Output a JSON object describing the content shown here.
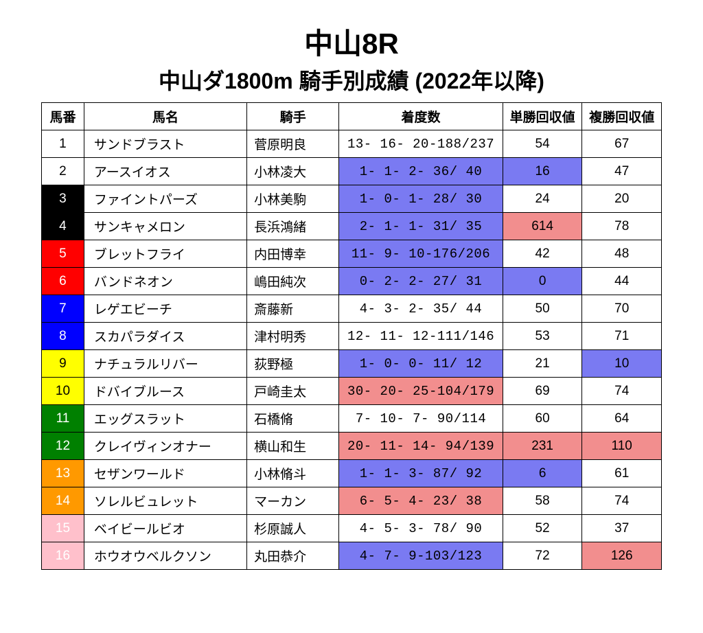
{
  "title": "中山8R",
  "subtitle": "中山ダ1800m 騎手別成績 (2022年以降)",
  "columns": [
    "馬番",
    "馬名",
    "騎手",
    "着度数",
    "単勝回収値",
    "複勝回収値"
  ],
  "highlight_colors": {
    "blue": "#7a7af2",
    "red": "#f28e8e",
    "none": "#ffffff"
  },
  "num_colors": {
    "white": {
      "bg": "#ffffff",
      "fg": "#000000"
    },
    "black": {
      "bg": "#000000",
      "fg": "#ffffff"
    },
    "red": {
      "bg": "#ff0000",
      "fg": "#ffffff"
    },
    "blue": {
      "bg": "#0000ff",
      "fg": "#ffffff"
    },
    "yellow": {
      "bg": "#ffff00",
      "fg": "#000000"
    },
    "green": {
      "bg": "#008000",
      "fg": "#ffffff"
    },
    "orange": {
      "bg": "#ff9900",
      "fg": "#ffffff"
    },
    "pink": {
      "bg": "#ffc0cb",
      "fg": "#ffffff"
    }
  },
  "rows": [
    {
      "num": "1",
      "num_color": "white",
      "name": "サンドブラスト",
      "jockey": "菅原明良",
      "record": "13- 16- 20-188/237",
      "record_hl": "none",
      "win": "54",
      "win_hl": "none",
      "place": "67",
      "place_hl": "none"
    },
    {
      "num": "2",
      "num_color": "white",
      "name": "アースイオス",
      "jockey": "小林凌大",
      "record": " 1-  1-  2- 36/ 40",
      "record_hl": "blue",
      "win": "16",
      "win_hl": "blue",
      "place": "47",
      "place_hl": "none"
    },
    {
      "num": "3",
      "num_color": "black",
      "name": "ファイントパーズ",
      "jockey": "小林美駒",
      "record": " 1-  0-  1- 28/ 30",
      "record_hl": "blue",
      "win": "24",
      "win_hl": "none",
      "place": "20",
      "place_hl": "none"
    },
    {
      "num": "4",
      "num_color": "black",
      "name": "サンキャメロン",
      "jockey": "長浜鴻緒",
      "record": " 2-  1-  1- 31/ 35",
      "record_hl": "blue",
      "win": "614",
      "win_hl": "red",
      "place": "78",
      "place_hl": "none"
    },
    {
      "num": "5",
      "num_color": "red",
      "name": "ブレットフライ",
      "jockey": "内田博幸",
      "record": "11-  9- 10-176/206",
      "record_hl": "blue",
      "win": "42",
      "win_hl": "none",
      "place": "48",
      "place_hl": "none"
    },
    {
      "num": "6",
      "num_color": "red",
      "name": "バンドネオン",
      "jockey": "嶋田純次",
      "record": " 0-  2-  2- 27/ 31",
      "record_hl": "blue",
      "win": "0",
      "win_hl": "blue",
      "place": "44",
      "place_hl": "none"
    },
    {
      "num": "7",
      "num_color": "blue",
      "name": "レゲエビーチ",
      "jockey": "斎藤新",
      "record": " 4-  3-  2- 35/ 44",
      "record_hl": "none",
      "win": "50",
      "win_hl": "none",
      "place": "70",
      "place_hl": "none"
    },
    {
      "num": "8",
      "num_color": "blue",
      "name": "スカパラダイス",
      "jockey": "津村明秀",
      "record": "12- 11- 12-111/146",
      "record_hl": "none",
      "win": "53",
      "win_hl": "none",
      "place": "71",
      "place_hl": "none"
    },
    {
      "num": "9",
      "num_color": "yellow",
      "name": "ナチュラルリバー",
      "jockey": "荻野極",
      "record": " 1-  0-  0- 11/ 12",
      "record_hl": "blue",
      "win": "21",
      "win_hl": "none",
      "place": "10",
      "place_hl": "blue"
    },
    {
      "num": "10",
      "num_color": "yellow",
      "name": "ドバイブルース",
      "jockey": "戸崎圭太",
      "record": "30- 20- 25-104/179",
      "record_hl": "red",
      "win": "69",
      "win_hl": "none",
      "place": "74",
      "place_hl": "none"
    },
    {
      "num": "11",
      "num_color": "green",
      "name": "エッグスラット",
      "jockey": "石橋脩",
      "record": " 7- 10-  7- 90/114",
      "record_hl": "none",
      "win": "60",
      "win_hl": "none",
      "place": "64",
      "place_hl": "none"
    },
    {
      "num": "12",
      "num_color": "green",
      "name": "クレイヴィンオナー",
      "jockey": "横山和生",
      "record": "20- 11- 14- 94/139",
      "record_hl": "red",
      "win": "231",
      "win_hl": "red",
      "place": "110",
      "place_hl": "red"
    },
    {
      "num": "13",
      "num_color": "orange",
      "name": "セザンワールド",
      "jockey": "小林脩斗",
      "record": " 1-  1-  3- 87/ 92",
      "record_hl": "blue",
      "win": "6",
      "win_hl": "blue",
      "place": "61",
      "place_hl": "none"
    },
    {
      "num": "14",
      "num_color": "orange",
      "name": "ソレルビュレット",
      "jockey": "マーカン",
      "record": " 6-  5-  4- 23/ 38",
      "record_hl": "red",
      "win": "58",
      "win_hl": "none",
      "place": "74",
      "place_hl": "none"
    },
    {
      "num": "15",
      "num_color": "pink",
      "name": "ベイビールビオ",
      "jockey": "杉原誠人",
      "record": " 4-  5-  3- 78/ 90",
      "record_hl": "none",
      "win": "52",
      "win_hl": "none",
      "place": "37",
      "place_hl": "none"
    },
    {
      "num": "16",
      "num_color": "pink",
      "name": "ホウオウベルクソン",
      "jockey": "丸田恭介",
      "record": " 4-  7-  9-103/123",
      "record_hl": "blue",
      "win": "72",
      "win_hl": "none",
      "place": "126",
      "place_hl": "red"
    }
  ]
}
